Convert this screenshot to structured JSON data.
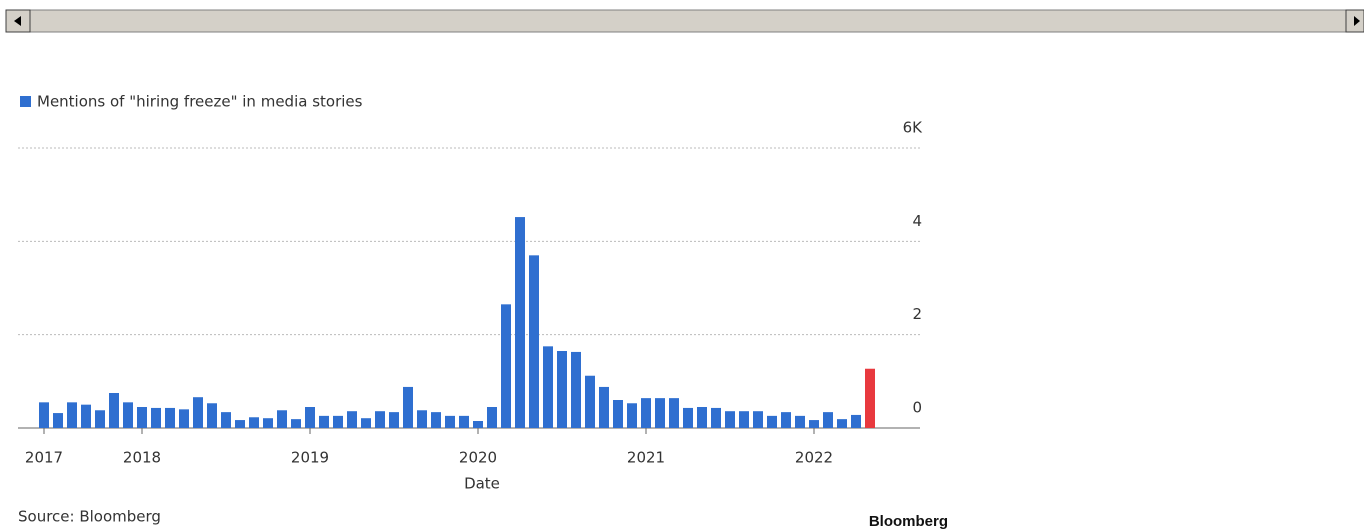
{
  "chart_data": {
    "type": "bar",
    "legend_label": "Mentions of \"hiring freeze\" in media stories",
    "x_label": "Date",
    "source": "Source: Bloomberg",
    "brand": "Bloomberg",
    "categories": [
      "2017",
      null,
      null,
      null,
      null,
      null,
      null,
      "2018",
      null,
      null,
      null,
      null,
      null,
      null,
      null,
      null,
      null,
      null,
      null,
      "2019",
      null,
      null,
      null,
      null,
      null,
      null,
      null,
      null,
      null,
      null,
      null,
      "2020",
      null,
      null,
      null,
      null,
      null,
      null,
      null,
      null,
      null,
      null,
      null,
      "2021",
      null,
      null,
      null,
      null,
      null,
      null,
      null,
      null,
      null,
      null,
      null,
      "2022",
      null,
      null,
      null,
      null
    ],
    "values": [
      0.55,
      0.32,
      0.55,
      0.5,
      0.38,
      0.75,
      0.55,
      0.45,
      0.43,
      0.43,
      0.4,
      0.66,
      0.53,
      0.34,
      0.17,
      0.23,
      0.21,
      0.38,
      0.19,
      0.45,
      0.26,
      0.26,
      0.36,
      0.21,
      0.36,
      0.34,
      0.88,
      0.38,
      0.34,
      0.26,
      0.26,
      0.15,
      0.45,
      2.65,
      4.52,
      3.7,
      1.75,
      1.65,
      1.63,
      1.12,
      0.88,
      0.6,
      0.53,
      0.64,
      0.64,
      0.64,
      0.43,
      0.45,
      0.43,
      0.36,
      0.36,
      0.36,
      0.26,
      0.34,
      0.26,
      0.17,
      0.34,
      0.19,
      0.28,
      1.27
    ],
    "colors": [
      "#2f6fd0",
      "#2f6fd0",
      "#2f6fd0",
      "#2f6fd0",
      "#2f6fd0",
      "#2f6fd0",
      "#2f6fd0",
      "#2f6fd0",
      "#2f6fd0",
      "#2f6fd0",
      "#2f6fd0",
      "#2f6fd0",
      "#2f6fd0",
      "#2f6fd0",
      "#2f6fd0",
      "#2f6fd0",
      "#2f6fd0",
      "#2f6fd0",
      "#2f6fd0",
      "#2f6fd0",
      "#2f6fd0",
      "#2f6fd0",
      "#2f6fd0",
      "#2f6fd0",
      "#2f6fd0",
      "#2f6fd0",
      "#2f6fd0",
      "#2f6fd0",
      "#2f6fd0",
      "#2f6fd0",
      "#2f6fd0",
      "#2f6fd0",
      "#2f6fd0",
      "#2f6fd0",
      "#2f6fd0",
      "#2f6fd0",
      "#2f6fd0",
      "#2f6fd0",
      "#2f6fd0",
      "#2f6fd0",
      "#2f6fd0",
      "#2f6fd0",
      "#2f6fd0",
      "#2f6fd0",
      "#2f6fd0",
      "#2f6fd0",
      "#2f6fd0",
      "#2f6fd0",
      "#2f6fd0",
      "#2f6fd0",
      "#2f6fd0",
      "#2f6fd0",
      "#2f6fd0",
      "#2f6fd0",
      "#2f6fd0",
      "#2f6fd0",
      "#2f6fd0",
      "#2f6fd0",
      "#2f6fd0",
      "#e8393e"
    ],
    "legend_color": "#2f6fd0",
    "ylim": [
      0,
      6
    ],
    "yticks": [
      0,
      2,
      4,
      {
        "value": 6,
        "label": "6K"
      }
    ],
    "grid": true
  }
}
